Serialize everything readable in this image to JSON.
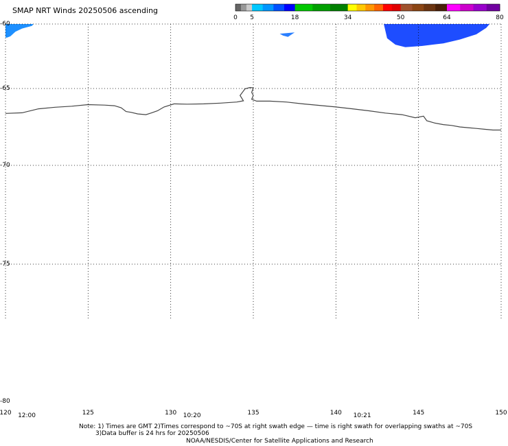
{
  "title": "SMAP NRT Winds 20250506 ascending",
  "color_scale": {
    "ticks": [
      "0",
      "5",
      "18",
      "34",
      "50",
      "64",
      "80"
    ],
    "tick_values": [
      0,
      5,
      18,
      34,
      50,
      64,
      80
    ],
    "segments": [
      {
        "from": 0,
        "to": 5,
        "colors": [
          "#666666",
          "#999999",
          "#cccccc"
        ]
      },
      {
        "from": 5,
        "to": 18,
        "colors": [
          "#00c8ff",
          "#0096ff",
          "#0050ff",
          "#0000ff"
        ]
      },
      {
        "from": 18,
        "to": 34,
        "colors": [
          "#00c800",
          "#00a000",
          "#008000"
        ]
      },
      {
        "from": 34,
        "to": 50,
        "colors": [
          "#ffff00",
          "#ffc800",
          "#ff9600",
          "#ff6400",
          "#ff0000",
          "#e00000"
        ]
      },
      {
        "from": 50,
        "to": 64,
        "colors": [
          "#a0522d",
          "#8b4513",
          "#6b3410",
          "#4a2008"
        ]
      },
      {
        "from": 64,
        "to": 80,
        "colors": [
          "#ff00ff",
          "#cc00cc",
          "#9900cc",
          "#7000a0"
        ]
      }
    ]
  },
  "map": {
    "lat_labels": [
      "-60",
      "-65",
      "-70",
      "-75",
      "-80"
    ],
    "lat_values": [
      -60,
      -65,
      -70,
      -75,
      -80
    ],
    "lon_labels": [
      "120",
      "125",
      "130",
      "135",
      "140",
      "145",
      "150"
    ],
    "lon_values": [
      120,
      125,
      130,
      135,
      140,
      145,
      150
    ],
    "lon_range": [
      120,
      150
    ],
    "lat_range": [
      -60,
      -80
    ],
    "time_labels": [
      {
        "text": "12:00",
        "lon": 121
      },
      {
        "text": "10:20",
        "lon": 131
      },
      {
        "text": "10:21",
        "lon": 141.3
      }
    ],
    "coastline": [
      [
        120.0,
        -66.62
      ],
      [
        121.0,
        -66.58
      ],
      [
        122.0,
        -66.32
      ],
      [
        123.0,
        -66.22
      ],
      [
        124.0,
        -66.15
      ],
      [
        125.0,
        -66.05
      ],
      [
        126.0,
        -66.08
      ],
      [
        126.6,
        -66.12
      ],
      [
        127.0,
        -66.25
      ],
      [
        127.3,
        -66.5
      ],
      [
        127.6,
        -66.55
      ],
      [
        128.0,
        -66.65
      ],
      [
        128.5,
        -66.7
      ],
      [
        128.8,
        -66.6
      ],
      [
        129.2,
        -66.45
      ],
      [
        129.6,
        -66.2
      ],
      [
        130.2,
        -66.0
      ],
      [
        131.0,
        -66.02
      ],
      [
        132.0,
        -66.0
      ],
      [
        133.0,
        -65.95
      ],
      [
        134.0,
        -65.88
      ],
      [
        134.4,
        -65.8
      ],
      [
        134.2,
        -65.45
      ],
      [
        134.5,
        -65.02
      ],
      [
        134.8,
        -64.92
      ],
      [
        135.0,
        -64.95
      ],
      [
        134.9,
        -65.25
      ],
      [
        135.0,
        -65.45
      ],
      [
        134.9,
        -65.7
      ],
      [
        135.2,
        -65.82
      ],
      [
        136.0,
        -65.82
      ],
      [
        137.0,
        -65.88
      ],
      [
        138.0,
        -66.0
      ],
      [
        139.0,
        -66.1
      ],
      [
        140.0,
        -66.2
      ],
      [
        141.0,
        -66.32
      ],
      [
        142.0,
        -66.45
      ],
      [
        143.0,
        -66.6
      ],
      [
        144.0,
        -66.7
      ],
      [
        144.8,
        -66.9
      ],
      [
        145.3,
        -66.8
      ],
      [
        145.5,
        -67.1
      ],
      [
        146.0,
        -67.25
      ],
      [
        146.5,
        -67.35
      ],
      [
        147.0,
        -67.4
      ],
      [
        147.5,
        -67.5
      ],
      [
        148.0,
        -67.55
      ],
      [
        148.5,
        -67.6
      ],
      [
        149.0,
        -67.65
      ],
      [
        149.5,
        -67.7
      ],
      [
        150.0,
        -67.7
      ]
    ],
    "wind_swaths": [
      {
        "color": "#1e90ff",
        "points": [
          [
            120.0,
            -60.0
          ],
          [
            121.7,
            -60.0
          ],
          [
            121.6,
            -60.15
          ],
          [
            121.0,
            -60.35
          ],
          [
            120.6,
            -60.6
          ],
          [
            120.3,
            -60.95
          ],
          [
            120.1,
            -61.05
          ],
          [
            120.0,
            -61.05
          ]
        ]
      },
      {
        "color": "#2a7fff",
        "points": [
          [
            136.6,
            -60.75
          ],
          [
            137.5,
            -60.65
          ],
          [
            137.1,
            -61.0
          ],
          [
            136.8,
            -60.9
          ]
        ]
      },
      {
        "color": "#1e4dff",
        "points": [
          [
            142.9,
            -60.0
          ],
          [
            149.3,
            -60.0
          ],
          [
            149.1,
            -60.3
          ],
          [
            148.5,
            -60.8
          ],
          [
            147.5,
            -61.2
          ],
          [
            146.5,
            -61.5
          ],
          [
            145.2,
            -61.7
          ],
          [
            144.2,
            -61.8
          ],
          [
            143.6,
            -61.6
          ],
          [
            143.1,
            -61.1
          ]
        ]
      }
    ]
  },
  "notes": {
    "line1": "Note: 1) Times are GMT 2)Times correspond to ~70S at right swath edge — time is right swath for overlapping swaths at ~70S",
    "line2": "3)Data buffer is 24 hrs for 20250506",
    "line3": "NOAA/NESDIS/Center for Satellite Applications and Research"
  }
}
